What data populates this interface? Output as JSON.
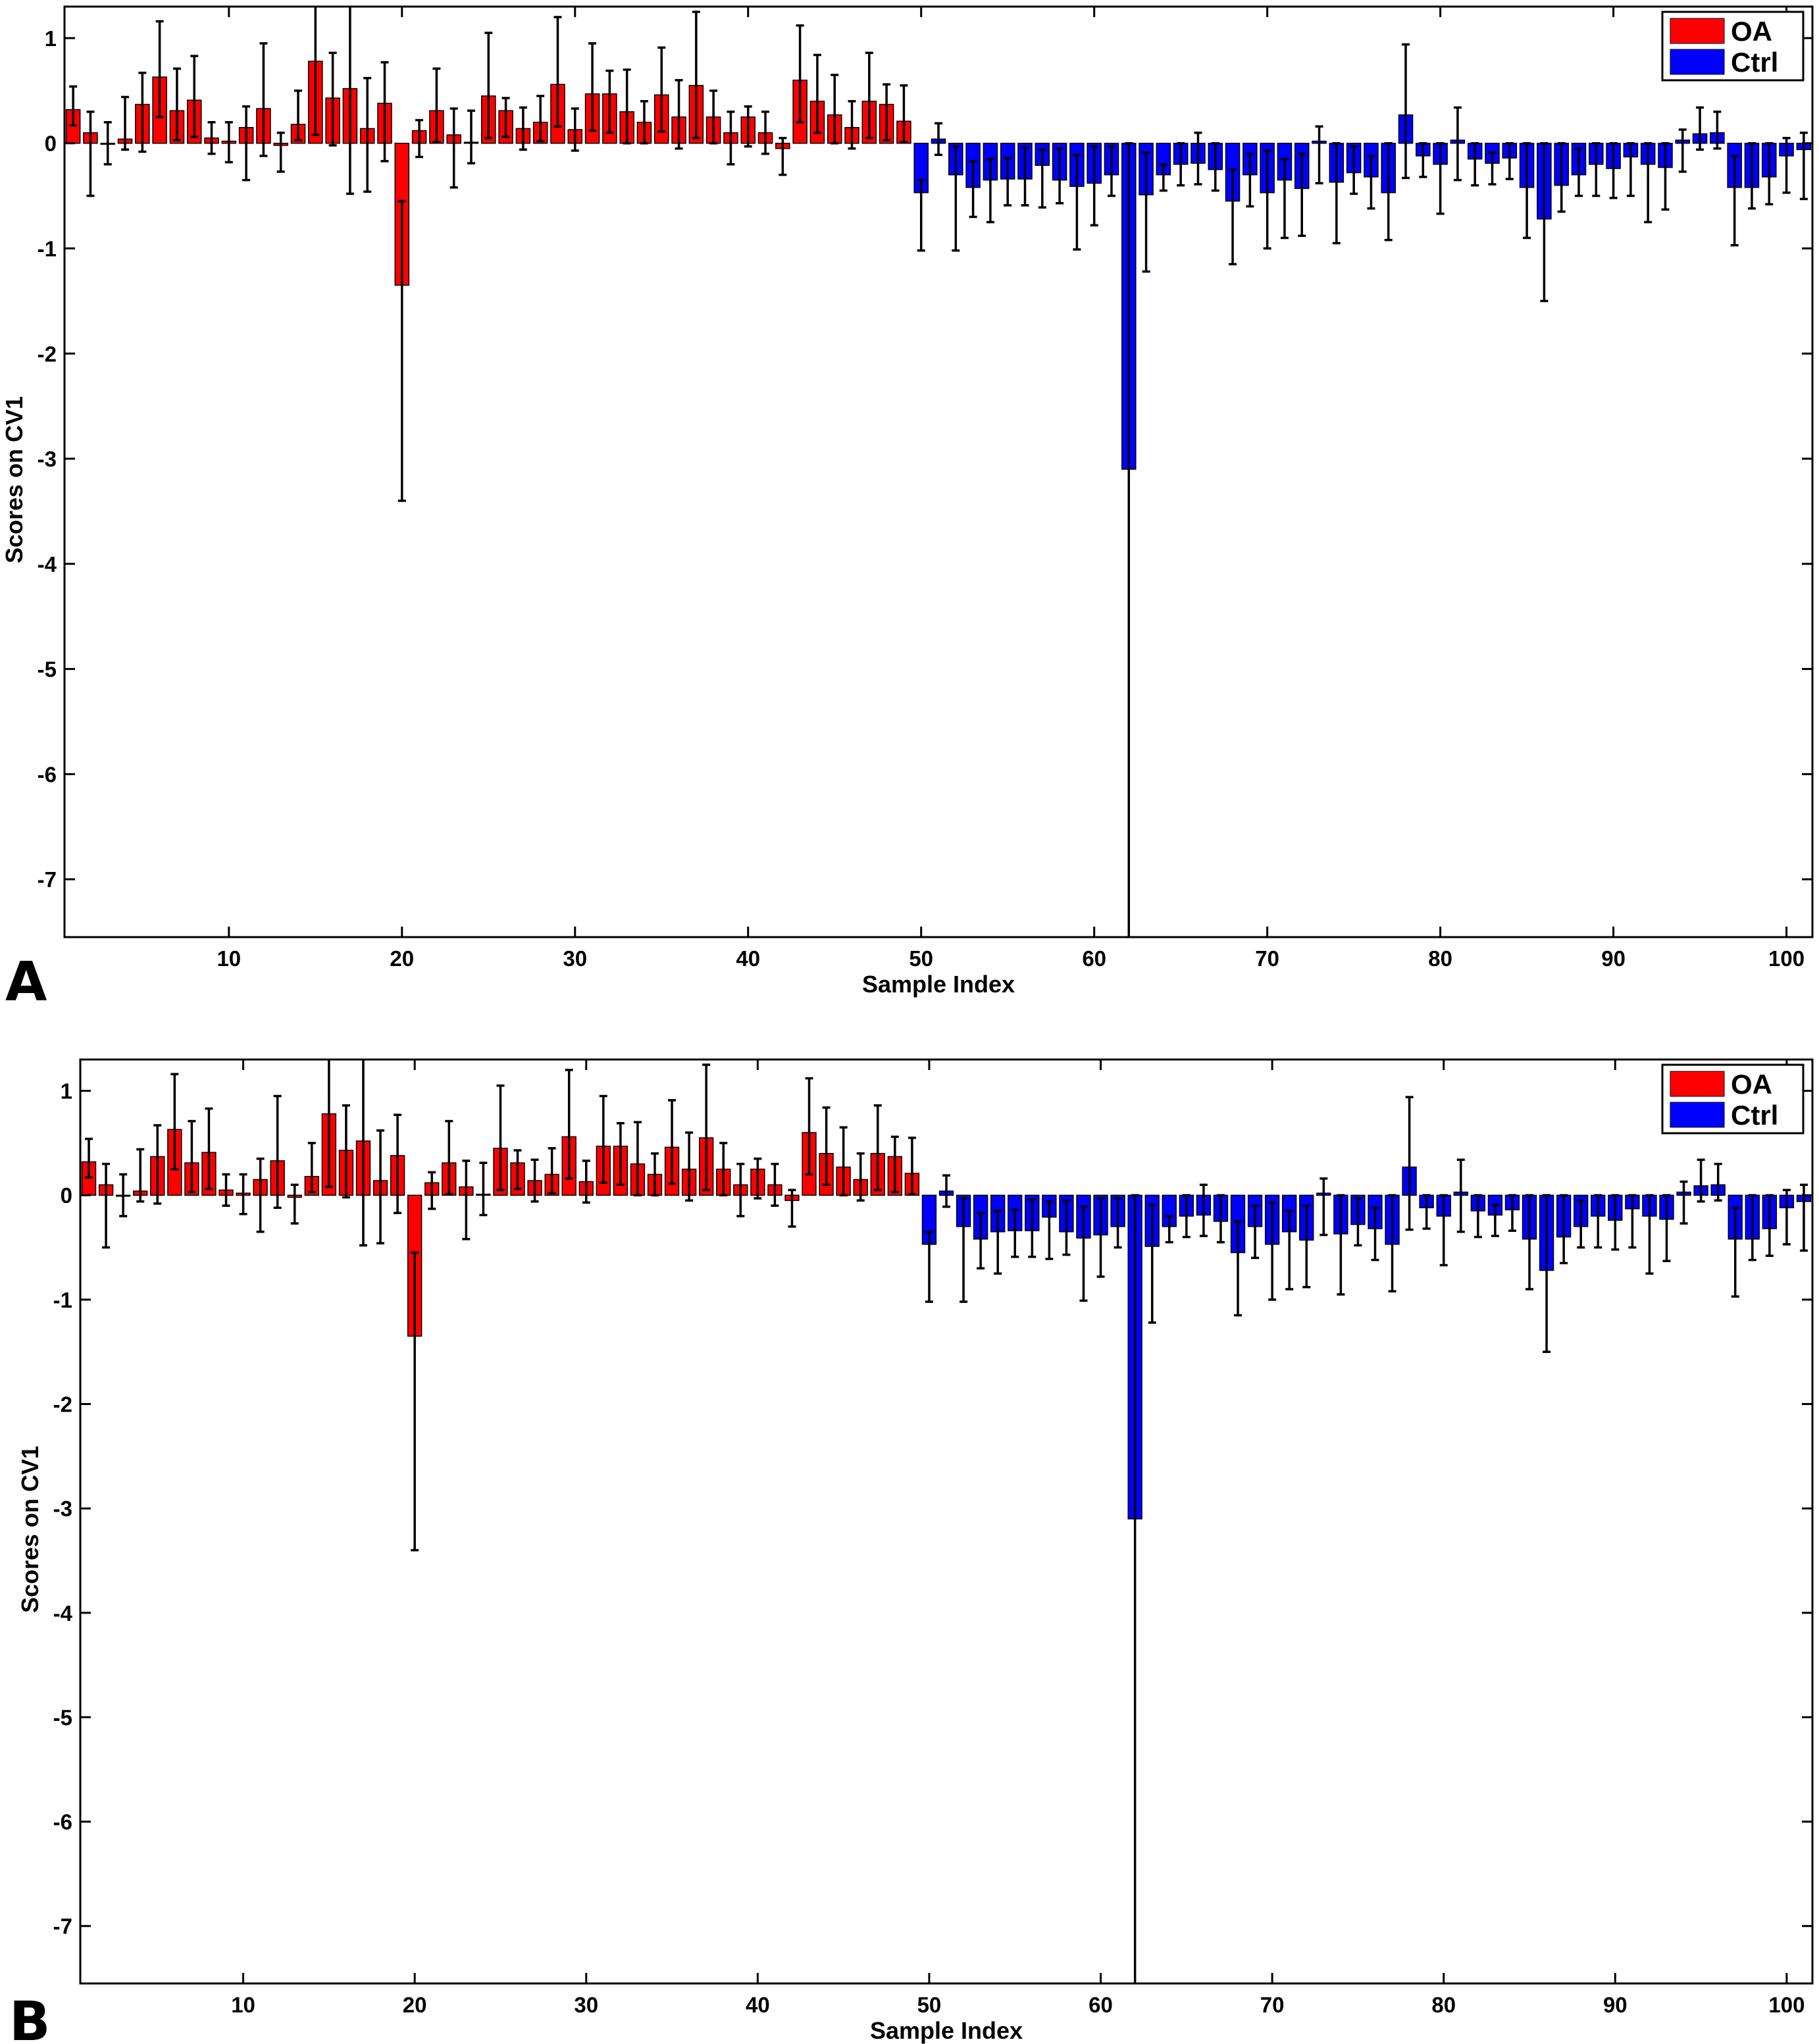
{
  "chart_data": [
    {
      "panel": "A",
      "type": "bar",
      "xlabel": "Sample Index",
      "ylabel": "Scores on CV1",
      "xlim": [
        0.5,
        101.5
      ],
      "ylim": [
        -7.55,
        1.3
      ],
      "xticks": [
        10,
        20,
        30,
        40,
        50,
        60,
        70,
        80,
        90,
        100
      ],
      "yticks": [
        1,
        0,
        -1,
        -2,
        -3,
        -4,
        -5,
        -6,
        -7
      ],
      "legend": {
        "position": "top-right"
      },
      "series": [
        {
          "name": "OA",
          "color": "#ff0000",
          "x_start": 1,
          "values": [
            0.32,
            0.1,
            0.0,
            0.04,
            0.37,
            0.63,
            0.31,
            0.41,
            0.05,
            0.02,
            0.15,
            0.33,
            -0.02,
            0.18,
            0.78,
            0.43,
            0.52,
            0.14,
            0.38,
            -1.35,
            0.12,
            0.31,
            0.08,
            0.01,
            0.45,
            0.31,
            0.14,
            0.2,
            0.56,
            0.13,
            0.47,
            0.47,
            0.3,
            0.2,
            0.46,
            0.25,
            0.55,
            0.25,
            0.1,
            0.25,
            0.1,
            -0.05,
            0.6,
            0.4,
            0.27,
            0.15,
            0.4,
            0.37,
            0.21
          ],
          "error_low": [
            0.15,
            0.6,
            0.2,
            0.1,
            0.45,
            0.38,
            0.28,
            0.35,
            0.15,
            0.2,
            0.5,
            0.45,
            0.25,
            0.15,
            0.7,
            0.45,
            1.0,
            0.6,
            0.55,
            2.05,
            0.25,
            0.3,
            0.5,
            0.2,
            0.4,
            0.25,
            0.2,
            0.18,
            0.4,
            0.2,
            0.35,
            0.37,
            0.3,
            0.2,
            0.35,
            0.3,
            0.5,
            0.25,
            0.3,
            0.28,
            0.2,
            0.25,
            0.4,
            0.3,
            0.27,
            0.2,
            0.35,
            0.34,
            0.2
          ],
          "error_high": [
            0.22,
            0.2,
            0.2,
            0.4,
            0.3,
            0.53,
            0.4,
            0.42,
            0.15,
            0.18,
            0.2,
            0.62,
            0.12,
            0.32,
            0.95,
            0.43,
            1.0,
            0.48,
            0.39,
            0.8,
            0.1,
            0.4,
            0.25,
            0.3,
            0.6,
            0.12,
            0.2,
            0.25,
            0.64,
            0.2,
            0.48,
            0.22,
            0.4,
            0.2,
            0.45,
            0.35,
            0.7,
            0.25,
            0.2,
            0.1,
            0.2,
            0.1,
            0.52,
            0.44,
            0.38,
            0.25,
            0.46,
            0.19,
            0.34
          ]
        },
        {
          "name": "Ctrl",
          "color": "#0000ff",
          "x_start": 50,
          "values": [
            -0.47,
            0.04,
            -0.3,
            -0.42,
            -0.35,
            -0.34,
            -0.34,
            -0.21,
            -0.35,
            -0.41,
            -0.38,
            -0.3,
            -3.1,
            -0.49,
            -0.3,
            -0.2,
            -0.19,
            -0.25,
            -0.55,
            -0.3,
            -0.47,
            -0.35,
            -0.43,
            0.02,
            -0.37,
            -0.28,
            -0.32,
            -0.47,
            0.27,
            -0.12,
            -0.2,
            0.03,
            -0.15,
            -0.19,
            -0.14,
            -0.42,
            -0.72,
            -0.4,
            -0.3,
            -0.2,
            -0.24,
            -0.13,
            -0.2,
            -0.23,
            0.03,
            0.09,
            0.1,
            -0.42,
            -0.42,
            -0.32,
            -0.12,
            -0.06
          ],
          "error_low": [
            0.55,
            0.15,
            0.72,
            0.28,
            0.4,
            0.25,
            0.25,
            0.4,
            0.22,
            0.6,
            0.4,
            0.2,
            4.5,
            0.73,
            0.15,
            0.2,
            0.2,
            0.2,
            0.6,
            0.3,
            0.53,
            0.55,
            0.45,
            0.4,
            0.58,
            0.2,
            0.3,
            0.45,
            0.6,
            0.2,
            0.47,
            0.38,
            0.25,
            0.2,
            0.2,
            0.48,
            0.78,
            0.25,
            0.2,
            0.3,
            0.28,
            0.37,
            0.55,
            0.4,
            0.3,
            0.15,
            0.15,
            0.55,
            0.2,
            0.26,
            0.35,
            0.47
          ],
          "error_high": [
            0.12,
            0.15,
            0.27,
            0.25,
            0.2,
            0.2,
            0.3,
            0.15,
            0.3,
            0.3,
            0.35,
            0.27,
            3.1,
            0.4,
            0.1,
            0.2,
            0.29,
            0.25,
            0.3,
            0.2,
            0.4,
            0.2,
            0.33,
            0.14,
            0.37,
            0.25,
            0.2,
            0.47,
            0.67,
            0.12,
            0.2,
            0.31,
            0.15,
            0.1,
            0.14,
            0.42,
            0.72,
            0.4,
            0.25,
            0.2,
            0.24,
            0.13,
            0.2,
            0.23,
            0.1,
            0.25,
            0.2,
            0.3,
            0.42,
            0.32,
            0.17,
            0.16
          ]
        }
      ]
    },
    {
      "panel": "B",
      "type": "bar",
      "xlabel": "Sample Index",
      "ylabel": "Scores on CV1",
      "xlim": [
        0.5,
        101.5
      ],
      "ylim": [
        -7.55,
        1.3
      ],
      "xticks": [
        10,
        20,
        30,
        40,
        50,
        60,
        70,
        80,
        90,
        100
      ],
      "yticks": [
        1,
        0,
        -1,
        -2,
        -3,
        -4,
        -5,
        -6,
        -7
      ],
      "legend": {
        "position": "top-right"
      },
      "series": [
        {
          "name": "OA",
          "color": "#ff0000",
          "x_start": 1,
          "values": [
            0.32,
            0.1,
            0.0,
            0.04,
            0.37,
            0.63,
            0.31,
            0.41,
            0.05,
            0.02,
            0.15,
            0.33,
            -0.02,
            0.18,
            0.78,
            0.43,
            0.52,
            0.14,
            0.38,
            -1.35,
            0.12,
            0.31,
            0.08,
            0.01,
            0.45,
            0.31,
            0.14,
            0.2,
            0.56,
            0.13,
            0.47,
            0.47,
            0.3,
            0.2,
            0.46,
            0.25,
            0.55,
            0.25,
            0.1,
            0.25,
            0.1,
            -0.05,
            0.6,
            0.4,
            0.27,
            0.15,
            0.4,
            0.37,
            0.21
          ],
          "error_low": [
            0.15,
            0.6,
            0.2,
            0.1,
            0.45,
            0.38,
            0.28,
            0.35,
            0.15,
            0.2,
            0.5,
            0.45,
            0.25,
            0.15,
            0.7,
            0.45,
            1.0,
            0.6,
            0.55,
            2.05,
            0.25,
            0.3,
            0.5,
            0.2,
            0.4,
            0.25,
            0.2,
            0.18,
            0.4,
            0.2,
            0.35,
            0.37,
            0.3,
            0.2,
            0.35,
            0.3,
            0.5,
            0.25,
            0.3,
            0.28,
            0.2,
            0.25,
            0.4,
            0.3,
            0.27,
            0.2,
            0.35,
            0.34,
            0.2
          ],
          "error_high": [
            0.22,
            0.2,
            0.2,
            0.4,
            0.3,
            0.53,
            0.4,
            0.42,
            0.15,
            0.18,
            0.2,
            0.62,
            0.12,
            0.32,
            0.95,
            0.43,
            1.0,
            0.48,
            0.39,
            0.8,
            0.1,
            0.4,
            0.25,
            0.3,
            0.6,
            0.12,
            0.2,
            0.25,
            0.64,
            0.2,
            0.48,
            0.22,
            0.4,
            0.2,
            0.45,
            0.35,
            0.7,
            0.25,
            0.2,
            0.1,
            0.2,
            0.1,
            0.52,
            0.44,
            0.38,
            0.25,
            0.46,
            0.19,
            0.34
          ]
        },
        {
          "name": "Ctrl",
          "color": "#0000ff",
          "x_start": 50,
          "values": [
            -0.47,
            0.04,
            -0.3,
            -0.42,
            -0.35,
            -0.34,
            -0.34,
            -0.21,
            -0.35,
            -0.41,
            -0.38,
            -0.3,
            -3.1,
            -0.49,
            -0.3,
            -0.2,
            -0.19,
            -0.25,
            -0.55,
            -0.3,
            -0.47,
            -0.35,
            -0.43,
            0.02,
            -0.37,
            -0.28,
            -0.32,
            -0.47,
            0.27,
            -0.12,
            -0.2,
            0.03,
            -0.15,
            -0.19,
            -0.14,
            -0.42,
            -0.72,
            -0.4,
            -0.3,
            -0.2,
            -0.24,
            -0.13,
            -0.2,
            -0.23,
            0.03,
            0.09,
            0.1,
            -0.42,
            -0.42,
            -0.32,
            -0.12,
            -0.06
          ],
          "error_low": [
            0.55,
            0.15,
            0.72,
            0.28,
            0.4,
            0.25,
            0.25,
            0.4,
            0.22,
            0.6,
            0.4,
            0.2,
            4.5,
            0.73,
            0.15,
            0.2,
            0.2,
            0.2,
            0.6,
            0.3,
            0.53,
            0.55,
            0.45,
            0.4,
            0.58,
            0.2,
            0.3,
            0.45,
            0.6,
            0.2,
            0.47,
            0.38,
            0.25,
            0.2,
            0.2,
            0.48,
            0.78,
            0.25,
            0.2,
            0.3,
            0.28,
            0.37,
            0.55,
            0.4,
            0.3,
            0.15,
            0.15,
            0.55,
            0.2,
            0.26,
            0.35,
            0.47
          ],
          "error_high": [
            0.12,
            0.15,
            0.27,
            0.25,
            0.2,
            0.2,
            0.3,
            0.15,
            0.3,
            0.3,
            0.35,
            0.27,
            3.1,
            0.4,
            0.1,
            0.2,
            0.29,
            0.25,
            0.3,
            0.2,
            0.4,
            0.2,
            0.33,
            0.14,
            0.37,
            0.25,
            0.2,
            0.47,
            0.67,
            0.12,
            0.2,
            0.31,
            0.15,
            0.1,
            0.14,
            0.42,
            0.72,
            0.4,
            0.25,
            0.2,
            0.24,
            0.13,
            0.2,
            0.23,
            0.1,
            0.25,
            0.2,
            0.3,
            0.42,
            0.32,
            0.17,
            0.16
          ]
        }
      ]
    }
  ]
}
